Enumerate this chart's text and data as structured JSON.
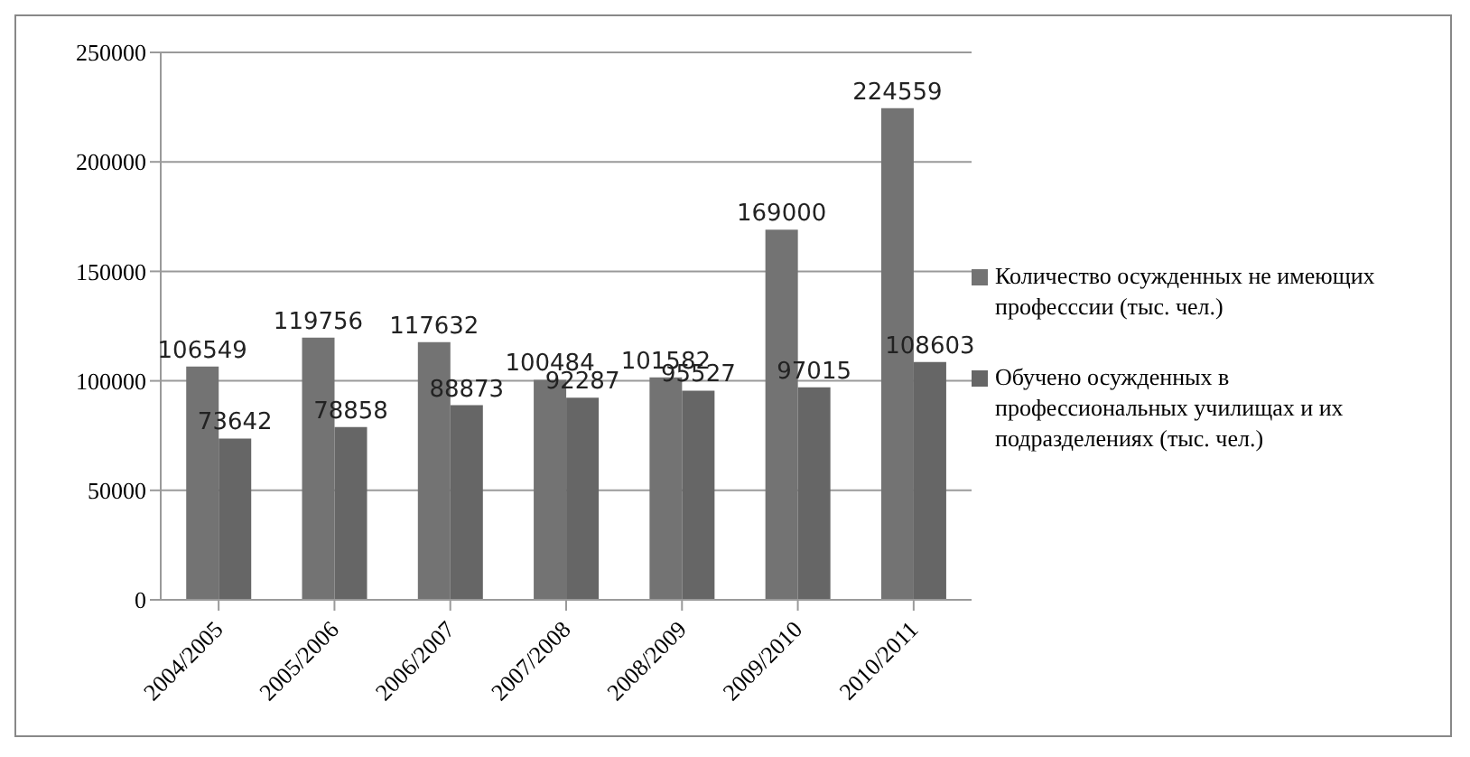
{
  "chart_data": {
    "type": "bar",
    "categories": [
      "2004/2005",
      "2005/2006",
      "2006/2007",
      "2007/2008",
      "2008/2009",
      "2009/2010",
      "2010/2011"
    ],
    "series": [
      {
        "name": "Количество осужденных не имеющих професссии (тыс. чел.)",
        "color": "#737373",
        "values": [
          106549,
          119756,
          117632,
          100484,
          101582,
          169000,
          224559
        ]
      },
      {
        "name": "Обучено осужденных в профессиональных училищах и их подразделениях (тыс. чел.)",
        "color": "#666666",
        "values": [
          73642,
          78858,
          88873,
          92287,
          95527,
          97015,
          108603
        ]
      }
    ],
    "ylim": [
      0,
      250000
    ],
    "yticks": [
      0,
      50000,
      100000,
      150000,
      200000,
      250000
    ],
    "grid": "y",
    "legend": "right",
    "data_labels": true
  }
}
